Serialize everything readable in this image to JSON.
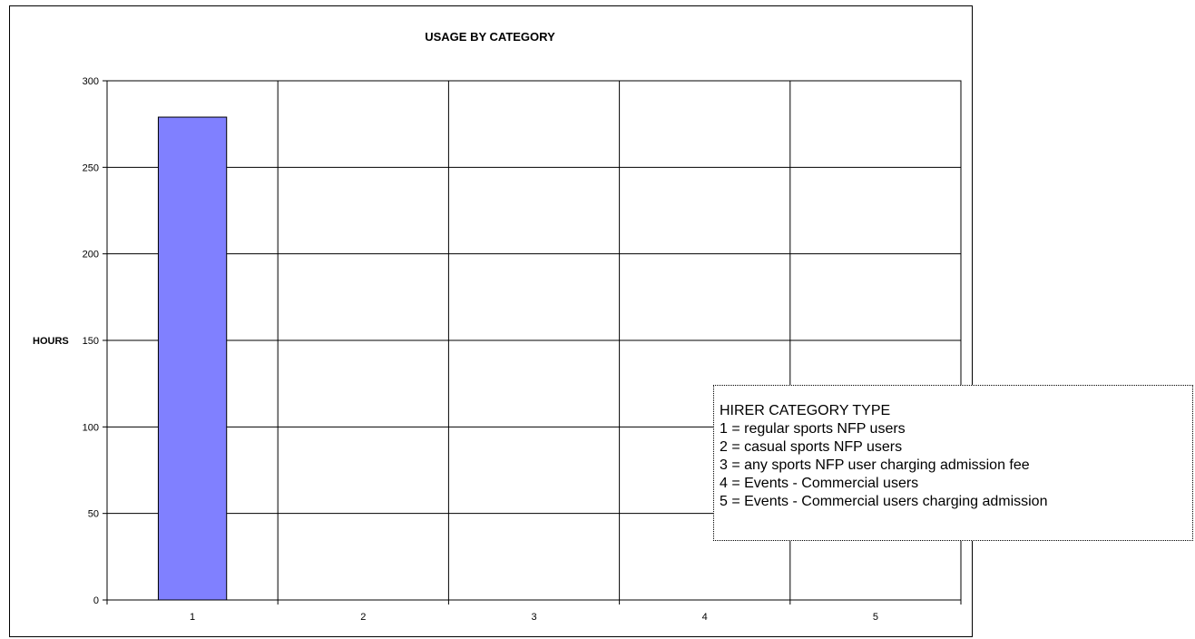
{
  "chart_data": {
    "type": "bar",
    "title": "USAGE BY CATEGORY",
    "ylabel": "HOURS",
    "xlabel": "",
    "categories": [
      "1",
      "2",
      "3",
      "4",
      "5"
    ],
    "values": [
      279,
      0,
      0,
      0,
      0
    ],
    "ylim": [
      0,
      300
    ],
    "yticks": [
      0,
      50,
      100,
      150,
      200,
      250,
      300
    ],
    "grid": true,
    "bar_color": "#8080FF"
  },
  "legend_box": {
    "title": "HIRER CATEGORY TYPE",
    "items": [
      "1 = regular sports NFP users",
      "2 = casual sports NFP users",
      "3 = any sports NFP user charging admission fee",
      "4 = Events - Commercial users",
      "5 = Events - Commercial users charging admission"
    ]
  }
}
